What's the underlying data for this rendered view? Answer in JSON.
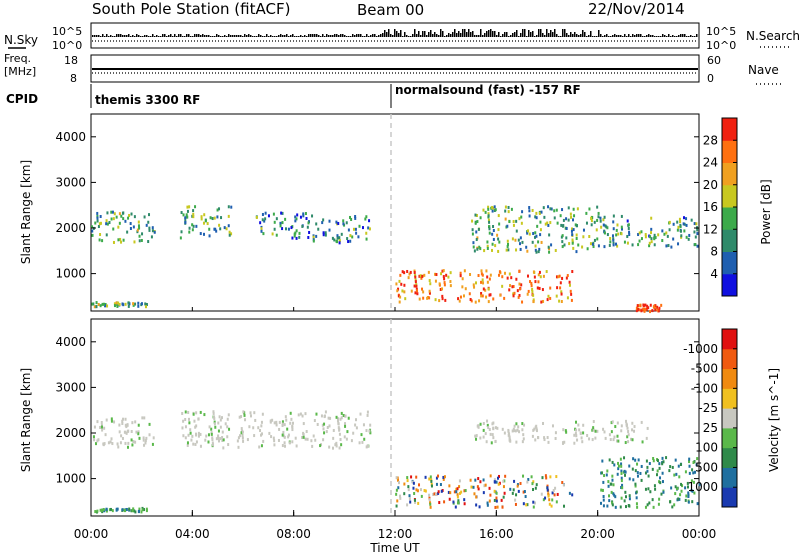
{
  "header": {
    "station": "South Pole Station (fitACF)",
    "beam": "Beam 00",
    "date": "22/Nov/2014"
  },
  "top_panels": {
    "nsky": {
      "left_label": "N.Sky",
      "right_label": "N.Search",
      "left_ticks": [
        "10^5",
        "10^0"
      ],
      "right_ticks": [
        "10^5",
        "10^0"
      ]
    },
    "freq": {
      "left_label_line1": "Freq.",
      "left_label_line2": "[MHz]",
      "left_ticks": [
        "18",
        "8"
      ],
      "right_label": "Nave",
      "right_ticks": [
        "60",
        "0"
      ]
    },
    "cpid": {
      "label": "CPID",
      "segments": [
        {
          "text": "themis 3300 RF",
          "start_hour": 0
        },
        {
          "text": "normalsound (fast) -157 RF",
          "start_hour": 12
        }
      ]
    }
  },
  "chart_data": [
    {
      "type": "heatmap",
      "name": "power",
      "ylabel": "Slant Range [km]",
      "yticks": [
        "1000",
        "2000",
        "3000",
        "4000"
      ],
      "ylim": [
        180,
        4500
      ],
      "xlim": [
        0,
        24
      ],
      "colorbar": {
        "label": "Power [dB]",
        "ticks": [
          "4",
          "8",
          "12",
          "16",
          "20",
          "24",
          "28"
        ],
        "colors": [
          "#1010e0",
          "#1f5fb0",
          "#2f8a6a",
          "#3caa4a",
          "#c8c820",
          "#f0a020",
          "#ff7010",
          "#f02010"
        ]
      },
      "regions": [
        {
          "hours": [
            0.0,
            2.2
          ],
          "range_km": [
            300,
            400
          ],
          "level": 0.4
        },
        {
          "hours": [
            0.0,
            2.5
          ],
          "range_km": [
            1700,
            2400
          ],
          "level": 0.4
        },
        {
          "hours": [
            3.5,
            5.5
          ],
          "range_km": [
            1800,
            2500
          ],
          "level": 0.4
        },
        {
          "hours": [
            6.5,
            8.5
          ],
          "range_km": [
            1800,
            2400
          ],
          "level": 0.3
        },
        {
          "hours": [
            8.5,
            11.0
          ],
          "range_km": [
            1700,
            2300
          ],
          "level": 0.3
        },
        {
          "hours": [
            12.0,
            19.0
          ],
          "range_km": [
            400,
            1100
          ],
          "level": 0.8
        },
        {
          "hours": [
            15.0,
            20.0
          ],
          "range_km": [
            1500,
            2500
          ],
          "level": 0.4
        },
        {
          "hours": [
            20.0,
            24.0
          ],
          "range_km": [
            1600,
            2300
          ],
          "level": 0.35
        },
        {
          "hours": [
            21.5,
            22.5
          ],
          "range_km": [
            200,
            350
          ],
          "level": 0.9
        }
      ]
    },
    {
      "type": "heatmap",
      "name": "velocity",
      "ylabel": "Slant Range [km]",
      "yticks": [
        "1000",
        "2000",
        "3000",
        "4000"
      ],
      "ylim": [
        180,
        4500
      ],
      "xlim": [
        0,
        24
      ],
      "xticks": [
        "00:00",
        "04:00",
        "08:00",
        "12:00",
        "16:00",
        "20:00",
        "00:00"
      ],
      "xlabel": "Time UT",
      "colorbar": {
        "label": "Velocity [m s^-1]",
        "ticks": [
          "1000",
          "500",
          "100",
          "25",
          "-25",
          "-100",
          "-500",
          "-1000"
        ],
        "colors": [
          "#1a3ab0",
          "#1f6f9f",
          "#2f8a4a",
          "#5ab84a",
          "#c8c8c0",
          "#f0c020",
          "#f08a10",
          "#f05a10",
          "#e01010"
        ]
      },
      "regions": [
        {
          "hours": [
            0.0,
            2.5
          ],
          "range_km": [
            1700,
            2400
          ],
          "class": "ground"
        },
        {
          "hours": [
            3.5,
            11.0
          ],
          "range_km": [
            1700,
            2500
          ],
          "class": "ground"
        },
        {
          "hours": [
            0.0,
            2.2
          ],
          "range_km": [
            300,
            380
          ],
          "class": "positive"
        },
        {
          "hours": [
            12.0,
            19.0
          ],
          "range_km": [
            400,
            1100
          ],
          "class": "mixed"
        },
        {
          "hours": [
            15.0,
            22.0
          ],
          "range_km": [
            1800,
            2300
          ],
          "class": "ground"
        },
        {
          "hours": [
            20.0,
            24.0
          ],
          "range_km": [
            400,
            1500
          ],
          "class": "positive"
        }
      ]
    }
  ]
}
